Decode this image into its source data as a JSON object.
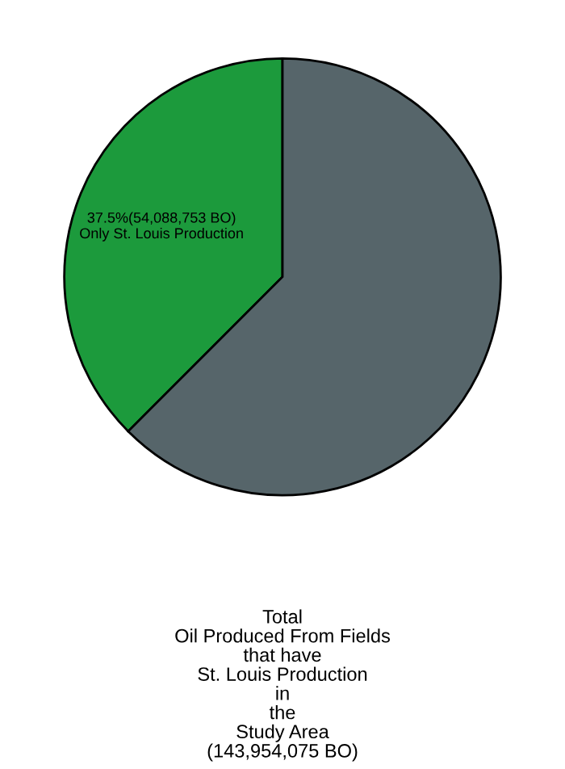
{
  "chart_data": {
    "type": "pie",
    "title": "Total\nOil Produced From Fields\nthat have\nSt. Louis Production\nin\nthe\nStudy Area\n(143,954,075 BO)",
    "categories": [
      "Only St. Louis Production",
      null
    ],
    "values": [
      37.5,
      62.5
    ],
    "value_labels": [
      "37.5%(54,088,753 BO)",
      null
    ],
    "colors": [
      "#1c9a3c",
      "#56656a"
    ],
    "legend": false
  }
}
